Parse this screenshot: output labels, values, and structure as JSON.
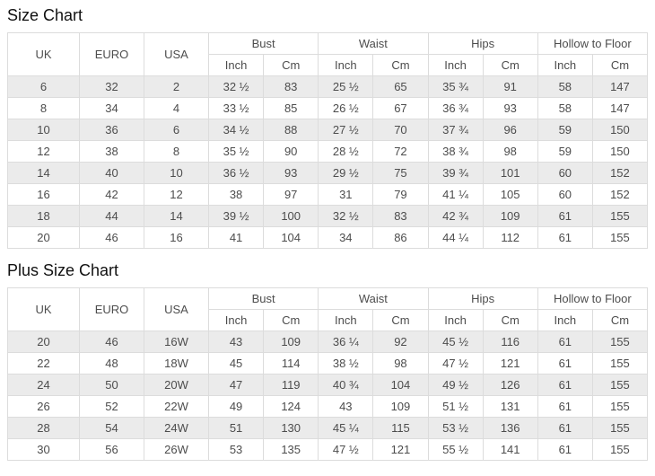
{
  "colors": {
    "row_shade": "#ebebeb",
    "border": "#dcdcdc",
    "text": "#4d4d4d",
    "title": "#111111"
  },
  "tables": [
    {
      "title": "Size Chart",
      "simple_columns": [
        "UK",
        "EURO",
        "USA"
      ],
      "group_columns": [
        {
          "label": "Bust",
          "sub": [
            "Inch",
            "Cm"
          ]
        },
        {
          "label": "Waist",
          "sub": [
            "Inch",
            "Cm"
          ]
        },
        {
          "label": "Hips",
          "sub": [
            "Inch",
            "Cm"
          ]
        },
        {
          "label": "Hollow to Floor",
          "sub": [
            "Inch",
            "Cm"
          ]
        }
      ],
      "rows": [
        [
          "6",
          "32",
          "2",
          "32 ½",
          "83",
          "25 ½",
          "65",
          "35 ¾",
          "91",
          "58",
          "147"
        ],
        [
          "8",
          "34",
          "4",
          "33 ½",
          "85",
          "26 ½",
          "67",
          "36 ¾",
          "93",
          "58",
          "147"
        ],
        [
          "10",
          "36",
          "6",
          "34 ½",
          "88",
          "27 ½",
          "70",
          "37 ¾",
          "96",
          "59",
          "150"
        ],
        [
          "12",
          "38",
          "8",
          "35 ½",
          "90",
          "28 ½",
          "72",
          "38 ¾",
          "98",
          "59",
          "150"
        ],
        [
          "14",
          "40",
          "10",
          "36 ½",
          "93",
          "29 ½",
          "75",
          "39 ¾",
          "101",
          "60",
          "152"
        ],
        [
          "16",
          "42",
          "12",
          "38",
          "97",
          "31",
          "79",
          "41 ¼",
          "105",
          "60",
          "152"
        ],
        [
          "18",
          "44",
          "14",
          "39 ½",
          "100",
          "32 ½",
          "83",
          "42 ¾",
          "109",
          "61",
          "155"
        ],
        [
          "20",
          "46",
          "16",
          "41",
          "104",
          "34",
          "86",
          "44 ¼",
          "112",
          "61",
          "155"
        ]
      ]
    },
    {
      "title": "Plus Size Chart",
      "simple_columns": [
        "UK",
        "EURO",
        "USA"
      ],
      "group_columns": [
        {
          "label": "Bust",
          "sub": [
            "Inch",
            "Cm"
          ]
        },
        {
          "label": "Waist",
          "sub": [
            "Inch",
            "Cm"
          ]
        },
        {
          "label": "Hips",
          "sub": [
            "Inch",
            "Cm"
          ]
        },
        {
          "label": "Hollow to Floor",
          "sub": [
            "Inch",
            "Cm"
          ]
        }
      ],
      "rows": [
        [
          "20",
          "46",
          "16W",
          "43",
          "109",
          "36 ¼",
          "92",
          "45 ½",
          "116",
          "61",
          "155"
        ],
        [
          "22",
          "48",
          "18W",
          "45",
          "114",
          "38 ½",
          "98",
          "47 ½",
          "121",
          "61",
          "155"
        ],
        [
          "24",
          "50",
          "20W",
          "47",
          "119",
          "40 ¾",
          "104",
          "49 ½",
          "126",
          "61",
          "155"
        ],
        [
          "26",
          "52",
          "22W",
          "49",
          "124",
          "43",
          "109",
          "51 ½",
          "131",
          "61",
          "155"
        ],
        [
          "28",
          "54",
          "24W",
          "51",
          "130",
          "45 ¼",
          "115",
          "53 ½",
          "136",
          "61",
          "155"
        ],
        [
          "30",
          "56",
          "26W",
          "53",
          "135",
          "47 ½",
          "121",
          "55 ½",
          "141",
          "61",
          "155"
        ]
      ]
    }
  ]
}
